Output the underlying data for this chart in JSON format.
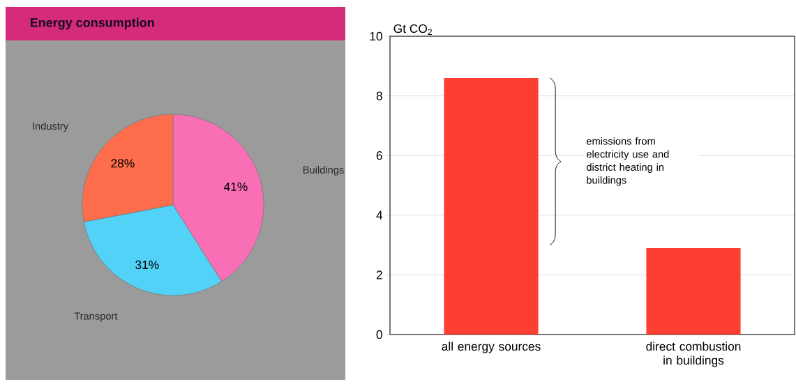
{
  "chart_data": [
    {
      "type": "pie",
      "title": "Energy consumption",
      "categories": [
        "Buildings",
        "Transport",
        "Industry"
      ],
      "values": [
        41,
        31,
        28
      ],
      "value_labels": [
        "41%",
        "31%",
        "28%"
      ],
      "colors": [
        "#f86fb6",
        "#52d2f7",
        "#ff6e4c"
      ]
    },
    {
      "type": "bar",
      "ylabel": "Gt CO$_{2}$",
      "categories": [
        "all energy sources",
        "direct combustion in buildings"
      ],
      "values": [
        8.6,
        2.9
      ],
      "color": "#fe3e31",
      "ylim": [
        0,
        10
      ],
      "yticks": [
        0,
        2,
        4,
        6,
        8,
        10
      ],
      "grid": "y",
      "annotations": [
        "emissions from electricity use and district heating in buildings"
      ]
    }
  ]
}
